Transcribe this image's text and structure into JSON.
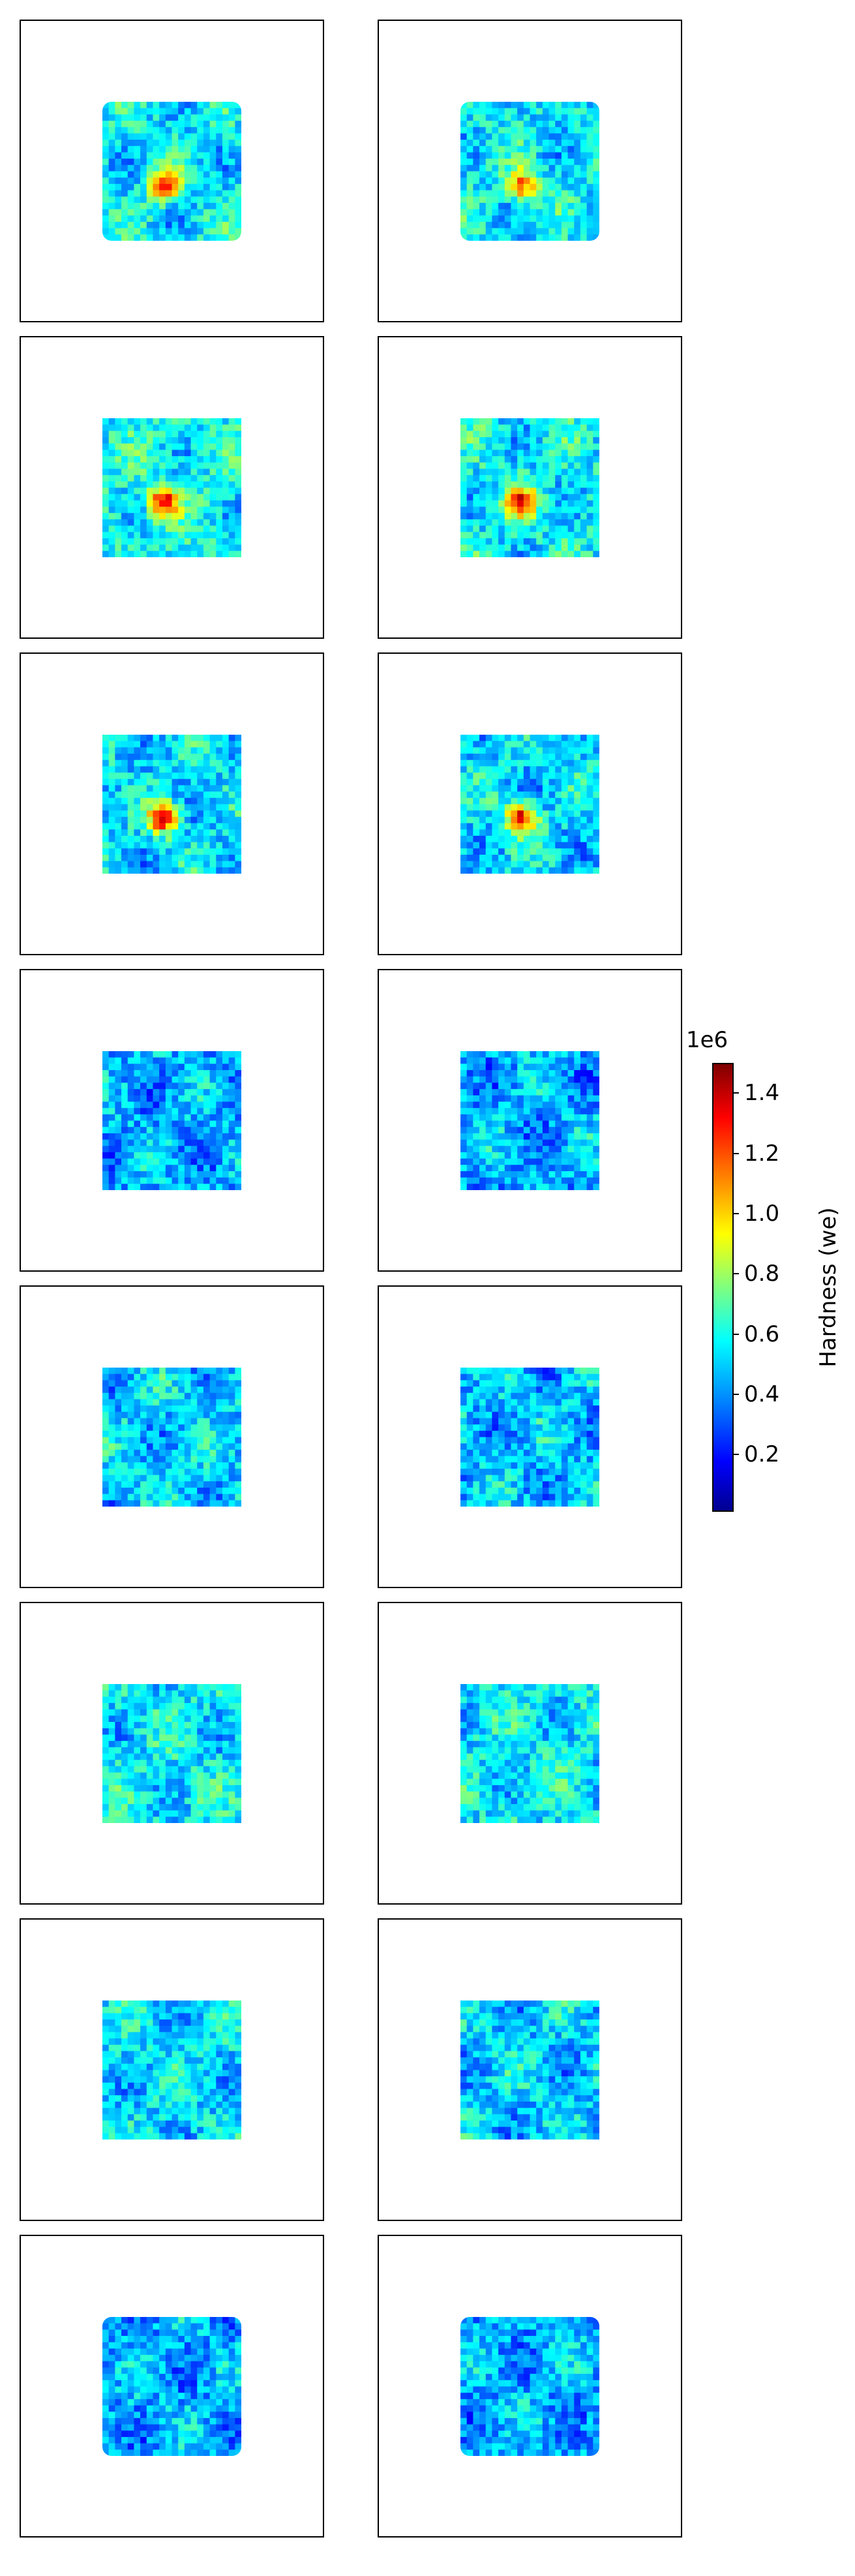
{
  "chart_data": {
    "type": "heatmap",
    "layout": {
      "rows": 8,
      "columns": 2
    },
    "colormap": "jet",
    "colors": {
      "low": "#00008f",
      "mid": "#7fff7f",
      "high": "#7f0000"
    },
    "panels_axes": "off",
    "colorbar": {
      "label": "Hardness (we)",
      "offset_text": "1e6",
      "range": [
        0.01,
        1.5
      ],
      "ticks": [
        0.2,
        0.4,
        0.6,
        0.8,
        1.0,
        1.2,
        1.4
      ],
      "tick_labels": [
        "0.2",
        "0.4",
        "0.6",
        "0.8",
        "1.0",
        "1.2",
        "1.4"
      ],
      "placement": "right"
    },
    "panels": [
      {
        "row": 1,
        "col": 1,
        "mean": 0.55,
        "hotspot": 1.3
      },
      {
        "row": 1,
        "col": 2,
        "mean": 0.55,
        "hotspot": 1.2
      },
      {
        "row": 2,
        "col": 1,
        "mean": 0.58,
        "hotspot": 1.3
      },
      {
        "row": 2,
        "col": 2,
        "mean": 0.56,
        "hotspot": 1.25
      },
      {
        "row": 3,
        "col": 1,
        "mean": 0.52,
        "hotspot": 1.35
      },
      {
        "row": 3,
        "col": 2,
        "mean": 0.52,
        "hotspot": 1.35
      },
      {
        "row": 4,
        "col": 1,
        "mean": 0.45,
        "hotspot": 0.75
      },
      {
        "row": 4,
        "col": 2,
        "mean": 0.45,
        "hotspot": 0.8
      },
      {
        "row": 5,
        "col": 1,
        "mean": 0.5,
        "hotspot": 0.75
      },
      {
        "row": 5,
        "col": 2,
        "mean": 0.48,
        "hotspot": 0.75
      },
      {
        "row": 6,
        "col": 1,
        "mean": 0.55,
        "hotspot": 0.75
      },
      {
        "row": 6,
        "col": 2,
        "mean": 0.55,
        "hotspot": 0.75
      },
      {
        "row": 7,
        "col": 1,
        "mean": 0.52,
        "hotspot": 0.75
      },
      {
        "row": 7,
        "col": 2,
        "mean": 0.5,
        "hotspot": 0.72
      },
      {
        "row": 8,
        "col": 1,
        "mean": 0.45,
        "hotspot": 0.75
      },
      {
        "row": 8,
        "col": 2,
        "mean": 0.45,
        "hotspot": 0.72
      }
    ]
  }
}
